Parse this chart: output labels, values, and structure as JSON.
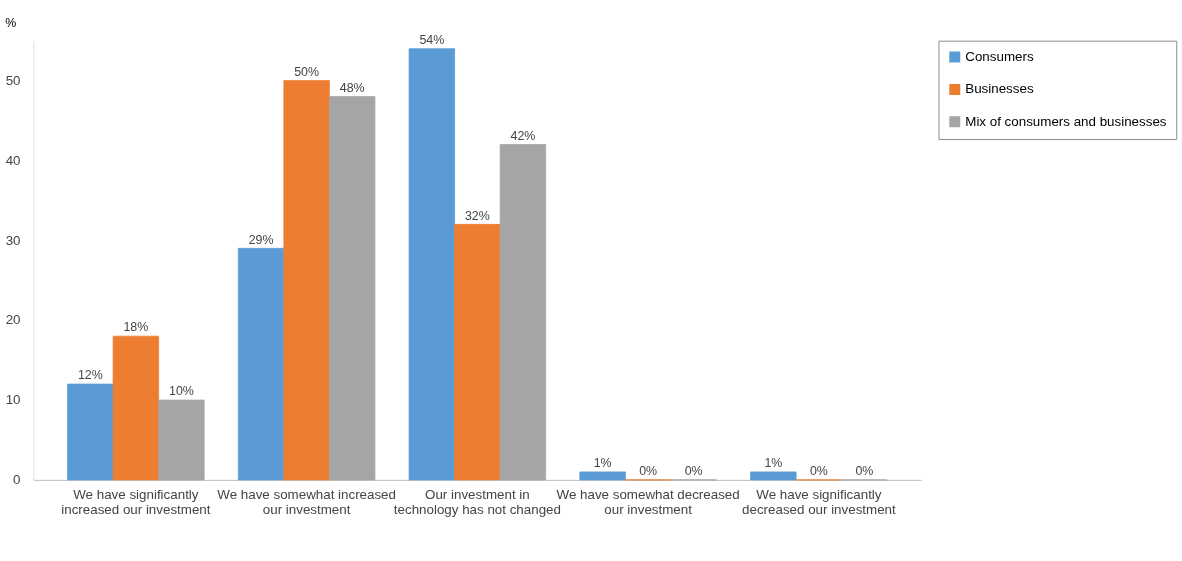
{
  "chart_data": {
    "type": "bar",
    "ylabel": "%",
    "categories": [
      "We have significantly increased our investment",
      "We have somewhat increased our investment",
      "Our investment in technology has not changed",
      "We have somewhat decreased our investment",
      "We have significantly decreased our investment"
    ],
    "series": [
      {
        "name": "Consumers",
        "color": "#5b9bd5",
        "values": [
          12,
          29,
          54,
          1,
          1
        ],
        "value_labels": [
          "12%",
          "29%",
          "54%",
          "1%",
          "1%"
        ]
      },
      {
        "name": "Businesses",
        "color": "#ed7d31",
        "values": [
          18,
          50,
          32,
          0,
          0
        ],
        "value_labels": [
          "18%",
          "50%",
          "32%",
          "0%",
          "0%"
        ]
      },
      {
        "name": "Mix of consumers and businesses",
        "color": "#a5a5a5",
        "values": [
          10,
          48,
          42,
          0,
          0
        ],
        "value_labels": [
          "10%",
          "48%",
          "42%",
          "0%",
          "0%"
        ]
      }
    ],
    "ylim": [
      0,
      55
    ],
    "yticks": [
      0,
      10,
      20,
      30,
      40,
      50
    ],
    "grid": false,
    "legend": "right"
  }
}
